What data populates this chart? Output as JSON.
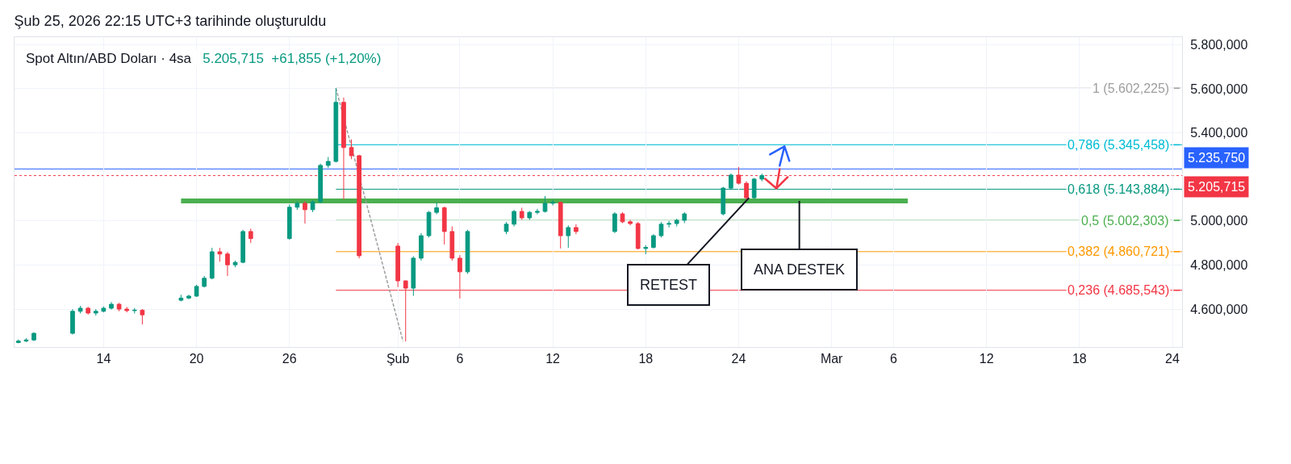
{
  "chart_data": {
    "type": "candlestick",
    "title": "Şub 25, 2026 22:15 UTC+3 tarihinde oluşturuldu",
    "subtitle": "Spot Altın/ABD Doları · 4sa",
    "x": [
      "2026-01-08T12:00",
      "2026-01-09T00:00",
      "2026-01-09T12:00",
      "2026-01-12T00:00",
      "2026-01-12T12:00",
      "2026-01-13T00:00",
      "2026-01-13T12:00",
      "2026-01-14T00:00",
      "2026-01-14T12:00",
      "2026-01-15T00:00",
      "2026-01-15T12:00",
      "2026-01-16T00:00",
      "2026-01-16T12:00",
      "2026-01-19T00:00",
      "2026-01-19T12:00",
      "2026-01-20T00:00",
      "2026-01-20T12:00",
      "2026-01-21T00:00",
      "2026-01-21T12:00",
      "2026-01-22T00:00",
      "2026-01-22T12:00",
      "2026-01-23T00:00",
      "2026-01-23T12:00",
      "2026-01-26T00:00",
      "2026-01-26T12:00",
      "2026-01-27T00:00",
      "2026-01-27T12:00",
      "2026-01-28T00:00",
      "2026-01-28T12:00",
      "2026-01-29T00:00",
      "2026-01-29T12:00",
      "2026-01-30T00:00",
      "2026-01-30T12:00",
      "2026-02-02T00:00",
      "2026-02-02T12:00",
      "2026-02-03T00:00",
      "2026-02-03T12:00",
      "2026-02-04T00:00",
      "2026-02-04T12:00",
      "2026-02-05T00:00",
      "2026-02-05T12:00",
      "2026-02-06T00:00",
      "2026-02-06T12:00",
      "2026-02-09T00:00",
      "2026-02-09T12:00",
      "2026-02-10T00:00",
      "2026-02-10T12:00",
      "2026-02-11T00:00",
      "2026-02-11T12:00",
      "2026-02-12T00:00",
      "2026-02-12T12:00",
      "2026-02-13T00:00",
      "2026-02-13T12:00",
      "2026-02-16T00:00",
      "2026-02-16T12:00",
      "2026-02-17T00:00",
      "2026-02-17T12:00",
      "2026-02-18T00:00",
      "2026-02-18T12:00",
      "2026-02-19T00:00",
      "2026-02-19T12:00",
      "2026-02-20T00:00",
      "2026-02-20T12:00",
      "2026-02-23T00:00",
      "2026-02-23T12:00",
      "2026-02-24T00:00",
      "2026-02-24T12:00",
      "2026-02-25T00:00",
      "2026-02-25T12:00"
    ],
    "ohlc": [
      [
        4448,
        4462,
        4445,
        4455
      ],
      [
        4455,
        4468,
        4450,
        4460
      ],
      [
        4460,
        4495,
        4455,
        4490
      ],
      [
        4490,
        4600,
        4485,
        4590
      ],
      [
        4590,
        4615,
        4580,
        4604
      ],
      [
        4604,
        4610,
        4575,
        4582
      ],
      [
        4582,
        4600,
        4570,
        4590
      ],
      [
        4590,
        4612,
        4585,
        4604
      ],
      [
        4604,
        4632,
        4598,
        4622
      ],
      [
        4622,
        4628,
        4590,
        4600
      ],
      [
        4600,
        4610,
        4585,
        4593
      ],
      [
        4593,
        4605,
        4580,
        4595
      ],
      [
        4595,
        4600,
        4530,
        4574
      ],
      [
        4640,
        4665,
        4635,
        4650
      ],
      [
        4650,
        4665,
        4645,
        4659
      ],
      [
        4659,
        4710,
        4655,
        4703
      ],
      [
        4703,
        4750,
        4698,
        4740
      ],
      [
        4740,
        4878,
        4735,
        4860
      ],
      [
        4860,
        4878,
        4815,
        4850
      ],
      [
        4850,
        4860,
        4750,
        4801
      ],
      [
        4801,
        4820,
        4790,
        4812
      ],
      [
        4812,
        4960,
        4808,
        4952
      ],
      [
        4952,
        4965,
        4900,
        4920
      ],
      [
        4920,
        5075,
        4915,
        5062
      ],
      [
        5062,
        5090,
        5050,
        5080
      ],
      [
        5080,
        5090,
        4988,
        5051
      ],
      [
        5051,
        5095,
        5040,
        5087
      ],
      [
        5087,
        5260,
        5080,
        5252
      ],
      [
        5252,
        5290,
        5240,
        5270
      ],
      [
        5270,
        5602.225,
        5265,
        5538
      ],
      [
        5538,
        5560,
        5098,
        5333
      ],
      [
        5333,
        5370,
        5280,
        5296
      ],
      [
        5296,
        5300,
        4830,
        4842
      ],
      [
        4886,
        4900,
        4700,
        4728
      ],
      [
        4728,
        4730,
        4453,
        4695
      ],
      [
        4695,
        4840,
        4660,
        4831
      ],
      [
        4831,
        4945,
        4820,
        4933
      ],
      [
        4933,
        5045,
        4925,
        5039
      ],
      [
        5039,
        5085,
        5030,
        5060
      ],
      [
        5060,
        5065,
        4893,
        4952
      ],
      [
        4952,
        4975,
        4820,
        4831
      ],
      [
        4831,
        4845,
        4648,
        4769
      ],
      [
        4769,
        4960,
        4760,
        4952
      ],
      [
        4952,
        4995,
        4940,
        4985
      ],
      [
        4985,
        5050,
        4975,
        5043
      ],
      [
        5043,
        5060,
        5005,
        5014
      ],
      [
        5014,
        5045,
        5005,
        5039
      ],
      [
        5039,
        5055,
        5030,
        5043
      ],
      [
        5043,
        5113,
        5038,
        5080
      ],
      [
        5080,
        5095,
        5070,
        5084
      ],
      [
        5084,
        5088,
        4875,
        4933
      ],
      [
        4933,
        4980,
        4878,
        4970
      ],
      [
        4970,
        4985,
        4940,
        4952
      ],
      [
        4952,
        5040,
        4945,
        5032
      ],
      [
        5032,
        5040,
        4990,
        4996
      ],
      [
        4996,
        5005,
        4980,
        4988
      ],
      [
        4988,
        4995,
        4870,
        4875
      ],
      [
        4875,
        4890,
        4849,
        4880
      ],
      [
        4880,
        4940,
        4875,
        4933
      ],
      [
        4933,
        4995,
        4925,
        4985
      ],
      [
        4985,
        5000,
        4970,
        4988
      ],
      [
        4988,
        5010,
        4975,
        5003
      ],
      [
        5003,
        5040,
        4990,
        5032
      ],
      [
        5032,
        5155,
        5025,
        5149
      ],
      [
        5149,
        5215,
        5140,
        5208
      ],
      [
        5208,
        5245,
        5165,
        5171
      ],
      [
        5171,
        5180,
        5095,
        5105
      ],
      [
        5105,
        5195,
        5100,
        5190
      ],
      [
        5190,
        5215,
        5180,
        5205.715
      ]
    ],
    "series": [
      {
        "type": "line",
        "color": "#4caf50",
        "x": [
          "2026-01-19T00:00",
          "2026-03-06T22:00"
        ],
        "values": [
          5091,
          5091
        ]
      },
      {
        "type": "line",
        "color": "#9e9e9e",
        "line_style": "dashed",
        "x": [
          "2026-01-29T00:00",
          "2026-02-02T08:00"
        ],
        "values": [
          5602,
          4453
        ]
      }
    ],
    "ref_lines": [
      {
        "axis": "y",
        "value": 5602.225,
        "label": "1 (5.602,225)",
        "color": "#9e9e9e"
      },
      {
        "axis": "y",
        "value": 5345.458,
        "label": "0,786 (5.345,458)",
        "color": "#00bcd4"
      },
      {
        "axis": "y",
        "value": 5143.884,
        "label": "0,618 (5.143,884)",
        "color": "#089981"
      },
      {
        "axis": "y",
        "value": 5002.303,
        "label": "0,5 (5.002,303)",
        "color": "#4caf50"
      },
      {
        "axis": "y",
        "value": 4860.721,
        "label": "0,382 (4.860,721)",
        "color": "#ff9800"
      },
      {
        "axis": "y",
        "value": 4685.543,
        "label": "0,236 (4.685,543)",
        "color": "#f23645"
      },
      {
        "axis": "y",
        "value": 5235.75,
        "label": "5.235,750",
        "color": "#2962ff"
      },
      {
        "axis": "y",
        "value": 5205.715,
        "label": "5.205,715",
        "color": "#f23645",
        "line_style": "dotted"
      }
    ],
    "annotations": [
      "5.205,715  +61,855 (+1,20%)",
      {
        "text": "RETEST",
        "x": "2026-02-24T16:00",
        "y": 5105
      },
      {
        "text": "ANA DESTEK",
        "x": "2026-02-27T22:00",
        "y": 5091
      }
    ],
    "xlim": [
      "2026-01-08T06:00",
      "2026-03-24T15:00"
    ],
    "xticks": [
      {
        "value": "2026-01-14",
        "label": "14"
      },
      {
        "value": "2026-01-20",
        "label": "20"
      },
      {
        "value": "2026-01-26",
        "label": "26"
      },
      {
        "value": "2026-02-02",
        "label": "Şub"
      },
      {
        "value": "2026-02-06",
        "label": "6"
      },
      {
        "value": "2026-02-12",
        "label": "12"
      },
      {
        "value": "2026-02-18",
        "label": "18"
      },
      {
        "value": "2026-02-24",
        "label": "24"
      },
      {
        "value": "2026-03-02",
        "label": "Mar"
      },
      {
        "value": "2026-03-06",
        "label": "6"
      },
      {
        "value": "2026-03-12",
        "label": "12"
      },
      {
        "value": "2026-03-18",
        "label": "18"
      },
      {
        "value": "2026-03-24",
        "label": "24"
      }
    ],
    "ylim": [
      4428,
      5834
    ],
    "yticks": [
      {
        "value": 4600,
        "label": "4.600,000"
      },
      {
        "value": 4800,
        "label": "4.800,000"
      },
      {
        "value": 5000,
        "label": "5.000,000"
      },
      {
        "value": 5400,
        "label": "5.400,000"
      },
      {
        "value": 5600,
        "label": "5.600,000"
      },
      {
        "value": 5800,
        "label": "5.800,000"
      }
    ],
    "grid": true
  }
}
